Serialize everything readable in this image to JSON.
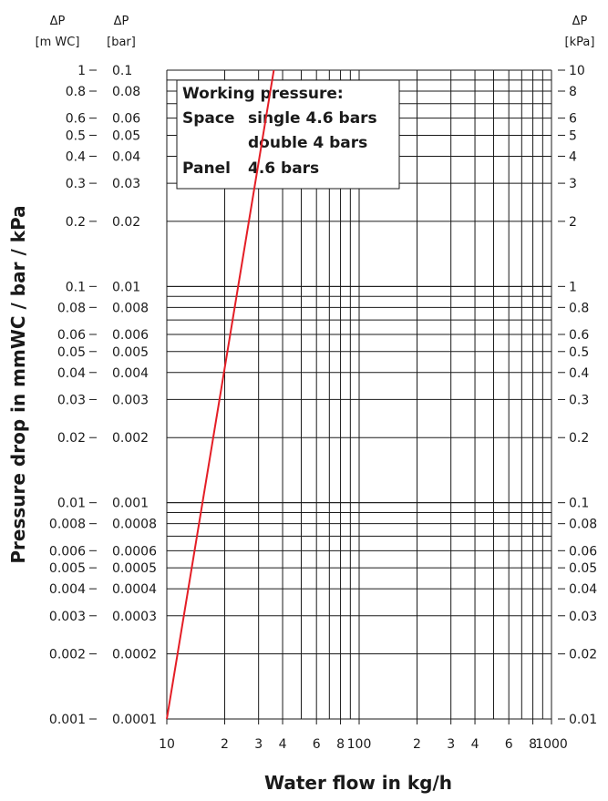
{
  "chart_data": {
    "type": "line",
    "xscale": "log",
    "yscale": "log",
    "grid": true,
    "xlabel": "Water flow in kg/h",
    "ylabel": "Pressure drop in mmWC / bar / kPa",
    "xlim": [
      10,
      1000
    ],
    "ylim_mwc": [
      0.001,
      1
    ],
    "x_ticks": [
      {
        "value": 10,
        "label": "10"
      },
      {
        "value": 20,
        "label": "2"
      },
      {
        "value": 30,
        "label": "3"
      },
      {
        "value": 40,
        "label": "4"
      },
      {
        "value": 60,
        "label": "6"
      },
      {
        "value": 80,
        "label": "8"
      },
      {
        "value": 100,
        "label": "100"
      },
      {
        "value": 200,
        "label": "2"
      },
      {
        "value": 300,
        "label": "3"
      },
      {
        "value": 400,
        "label": "4"
      },
      {
        "value": 600,
        "label": "6"
      },
      {
        "value": 800,
        "label": "8"
      },
      {
        "value": 1000,
        "label": "1000"
      }
    ],
    "y_axes": [
      {
        "header": [
          "ΔP",
          "[m WC]"
        ],
        "side": "left-outer",
        "ticks": [
          {
            "value": 1,
            "label": "1"
          },
          {
            "value": 0.8,
            "label": "0.8"
          },
          {
            "value": 0.6,
            "label": "0.6"
          },
          {
            "value": 0.5,
            "label": "0.5"
          },
          {
            "value": 0.4,
            "label": "0.4"
          },
          {
            "value": 0.3,
            "label": "0.3"
          },
          {
            "value": 0.2,
            "label": "0.2"
          },
          {
            "value": 0.1,
            "label": "0.1"
          },
          {
            "value": 0.08,
            "label": "0.08"
          },
          {
            "value": 0.06,
            "label": "0.06"
          },
          {
            "value": 0.05,
            "label": "0.05"
          },
          {
            "value": 0.04,
            "label": "0.04"
          },
          {
            "value": 0.03,
            "label": "0.03"
          },
          {
            "value": 0.02,
            "label": "0.02"
          },
          {
            "value": 0.01,
            "label": "0.01"
          },
          {
            "value": 0.008,
            "label": "0.008"
          },
          {
            "value": 0.006,
            "label": "0.006"
          },
          {
            "value": 0.005,
            "label": "0.005"
          },
          {
            "value": 0.004,
            "label": "0.004"
          },
          {
            "value": 0.003,
            "label": "0.003"
          },
          {
            "value": 0.002,
            "label": "0.002"
          },
          {
            "value": 0.001,
            "label": "0.001"
          }
        ]
      },
      {
        "header": [
          "ΔP",
          "[bar]"
        ],
        "side": "left-inner",
        "ticks": [
          {
            "value": 1,
            "label": "0.1"
          },
          {
            "value": 0.8,
            "label": "0.08"
          },
          {
            "value": 0.6,
            "label": "0.06"
          },
          {
            "value": 0.5,
            "label": "0.05"
          },
          {
            "value": 0.4,
            "label": "0.04"
          },
          {
            "value": 0.3,
            "label": "0.03"
          },
          {
            "value": 0.2,
            "label": "0.02"
          },
          {
            "value": 0.1,
            "label": "0.01"
          },
          {
            "value": 0.08,
            "label": "0.008"
          },
          {
            "value": 0.06,
            "label": "0.006"
          },
          {
            "value": 0.05,
            "label": "0.005"
          },
          {
            "value": 0.04,
            "label": "0.004"
          },
          {
            "value": 0.03,
            "label": "0.003"
          },
          {
            "value": 0.02,
            "label": "0.002"
          },
          {
            "value": 0.01,
            "label": "0.001"
          },
          {
            "value": 0.008,
            "label": "0.0008"
          },
          {
            "value": 0.006,
            "label": "0.0006"
          },
          {
            "value": 0.005,
            "label": "0.0005"
          },
          {
            "value": 0.004,
            "label": "0.0004"
          },
          {
            "value": 0.003,
            "label": "0.0003"
          },
          {
            "value": 0.002,
            "label": "0.0002"
          },
          {
            "value": 0.001,
            "label": "0.0001"
          }
        ]
      },
      {
        "header": [
          "ΔP",
          "[kPa]"
        ],
        "side": "right",
        "ticks": [
          {
            "value": 1,
            "label": "10"
          },
          {
            "value": 0.8,
            "label": "8"
          },
          {
            "value": 0.6,
            "label": "6"
          },
          {
            "value": 0.5,
            "label": "5"
          },
          {
            "value": 0.4,
            "label": "4"
          },
          {
            "value": 0.3,
            "label": "3"
          },
          {
            "value": 0.2,
            "label": "2"
          },
          {
            "value": 0.1,
            "label": "1"
          },
          {
            "value": 0.08,
            "label": "0.8"
          },
          {
            "value": 0.06,
            "label": "0.6"
          },
          {
            "value": 0.05,
            "label": "0.5"
          },
          {
            "value": 0.04,
            "label": "0.4"
          },
          {
            "value": 0.03,
            "label": "0.3"
          },
          {
            "value": 0.02,
            "label": "0.2"
          },
          {
            "value": 0.01,
            "label": "0.1"
          },
          {
            "value": 0.008,
            "label": "0.08"
          },
          {
            "value": 0.006,
            "label": "0.06"
          },
          {
            "value": 0.005,
            "label": "0.05"
          },
          {
            "value": 0.004,
            "label": "0.04"
          },
          {
            "value": 0.003,
            "label": "0.03"
          },
          {
            "value": 0.002,
            "label": "0.02"
          },
          {
            "value": 0.001,
            "label": "0.01"
          }
        ]
      }
    ],
    "series": [
      {
        "color": "#e41e26",
        "points": [
          {
            "x": 10,
            "y": 0.001
          },
          {
            "x": 36,
            "y": 1
          }
        ]
      }
    ],
    "annotation": {
      "lines": [
        [
          "Working pressure:"
        ],
        [
          "Space",
          "single 4.6 bars"
        ],
        [
          "",
          "double 4 bars"
        ],
        [
          "Panel",
          "4.6 bars"
        ]
      ]
    }
  }
}
